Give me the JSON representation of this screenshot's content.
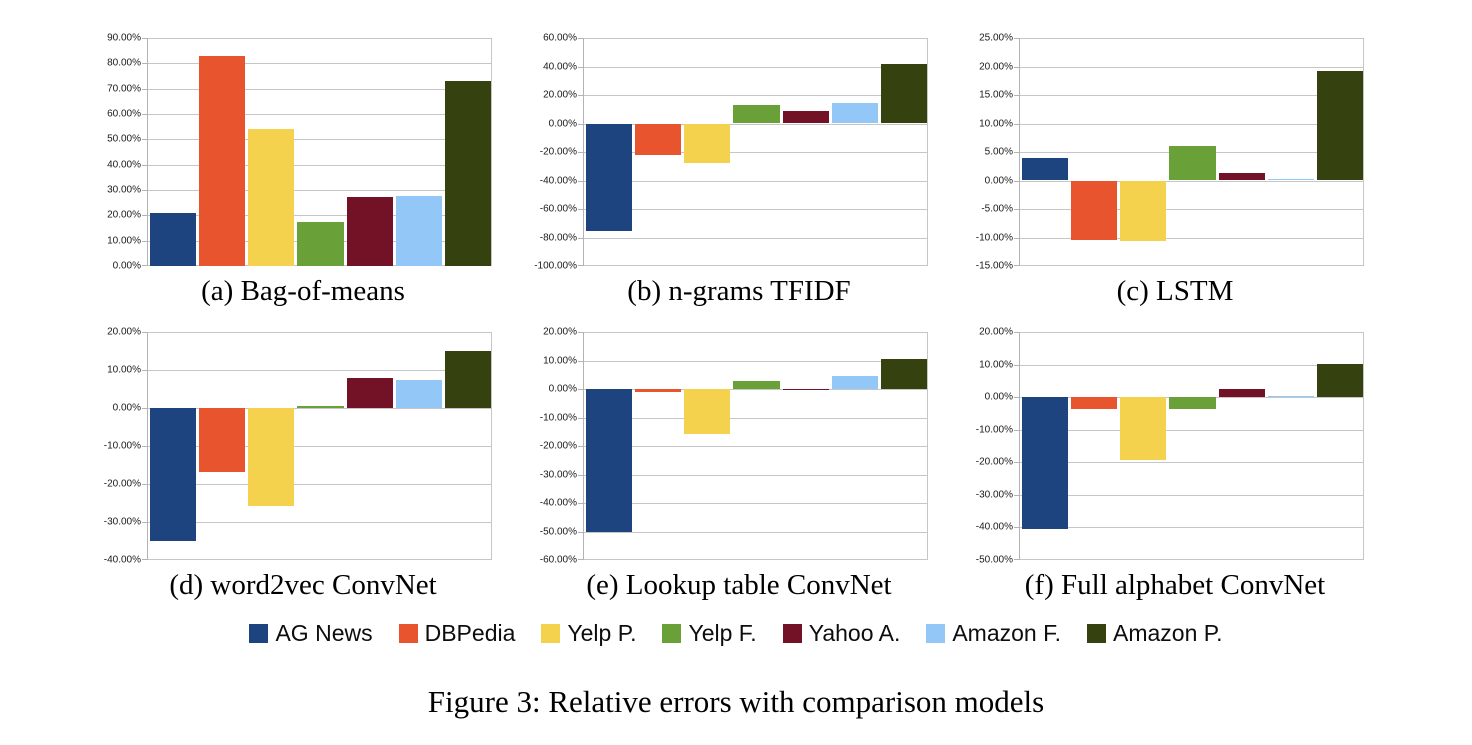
{
  "figure": {
    "caption": "Figure 3: Relative errors with comparison models"
  },
  "legend": {
    "items": [
      {
        "label": "AG News",
        "color": "#1E4480"
      },
      {
        "label": "DBPedia",
        "color": "#E8542D"
      },
      {
        "label": "Yelp P.",
        "color": "#F5D24D"
      },
      {
        "label": "Yelp F.",
        "color": "#69A038"
      },
      {
        "label": "Yahoo A.",
        "color": "#731226"
      },
      {
        "label": "Amazon F.",
        "color": "#92C7F8"
      },
      {
        "label": "Amazon P.",
        "color": "#35420F"
      }
    ]
  },
  "chart_data": [
    {
      "type": "bar",
      "title": "(a) Bag-of-means",
      "categories": [
        "AG News",
        "DBPedia",
        "Yelp P.",
        "Yelp F.",
        "Yahoo A.",
        "Amazon F.",
        "Amazon P."
      ],
      "values": [
        21.0,
        83.0,
        54.0,
        17.3,
        27.1,
        27.8,
        73.0
      ],
      "ylabel": "",
      "xlabel": "",
      "ylim": [
        0,
        90
      ],
      "ytick_step": 10,
      "tick_format": "percent2",
      "grid": true,
      "legend_position": "shared-bottom"
    },
    {
      "type": "bar",
      "title": "(b) n-grams TFIDF",
      "categories": [
        "AG News",
        "DBPedia",
        "Yelp P.",
        "Yelp F.",
        "Yahoo A.",
        "Amazon F.",
        "Amazon P."
      ],
      "values": [
        -75.6,
        -22.0,
        -27.5,
        13.0,
        8.5,
        14.7,
        41.8
      ],
      "ylabel": "",
      "xlabel": "",
      "ylim": [
        -100,
        60
      ],
      "ytick_step": 20,
      "tick_format": "percent2",
      "grid": true,
      "legend_position": "shared-bottom"
    },
    {
      "type": "bar",
      "title": "(c) LSTM",
      "categories": [
        "AG News",
        "DBPedia",
        "Yelp P.",
        "Yelp F.",
        "Yahoo A.",
        "Amazon F.",
        "Amazon P."
      ],
      "values": [
        3.9,
        -10.4,
        -10.6,
        6.0,
        1.3,
        0.3,
        19.2
      ],
      "ylabel": "",
      "xlabel": "",
      "ylim": [
        -15,
        25
      ],
      "ytick_step": 5,
      "tick_format": "percent2",
      "grid": true,
      "legend_position": "shared-bottom"
    },
    {
      "type": "bar",
      "title": "(d) word2vec ConvNet",
      "categories": [
        "AG News",
        "DBPedia",
        "Yelp P.",
        "Yelp F.",
        "Yahoo A.",
        "Amazon F.",
        "Amazon P."
      ],
      "values": [
        -35.0,
        -16.8,
        -25.8,
        0.6,
        7.8,
        7.5,
        15.1
      ],
      "ylabel": "",
      "xlabel": "",
      "ylim": [
        -40,
        20
      ],
      "ytick_step": 10,
      "tick_format": "percent2",
      "grid": true,
      "legend_position": "shared-bottom"
    },
    {
      "type": "bar",
      "title": "(e) Lookup table ConvNet",
      "categories": [
        "AG News",
        "DBPedia",
        "Yelp P.",
        "Yelp F.",
        "Yahoo A.",
        "Amazon F.",
        "Amazon P."
      ],
      "values": [
        -50.0,
        -1.0,
        -15.8,
        2.9,
        -0.2,
        4.4,
        10.6
      ],
      "ylabel": "",
      "xlabel": "",
      "ylim": [
        -60,
        20
      ],
      "ytick_step": 10,
      "tick_format": "percent2",
      "grid": true,
      "legend_position": "shared-bottom"
    },
    {
      "type": "bar",
      "title": "(f) Full alphabet ConvNet",
      "categories": [
        "AG News",
        "DBPedia",
        "Yelp P.",
        "Yelp F.",
        "Yahoo A.",
        "Amazon F.",
        "Amazon P."
      ],
      "values": [
        -40.5,
        -3.5,
        -19.3,
        -3.5,
        2.5,
        0.2,
        10.3
      ],
      "ylabel": "",
      "xlabel": "",
      "ylim": [
        -50,
        20
      ],
      "ytick_step": 10,
      "tick_format": "percent2",
      "grid": true,
      "legend_position": "shared-bottom"
    }
  ]
}
